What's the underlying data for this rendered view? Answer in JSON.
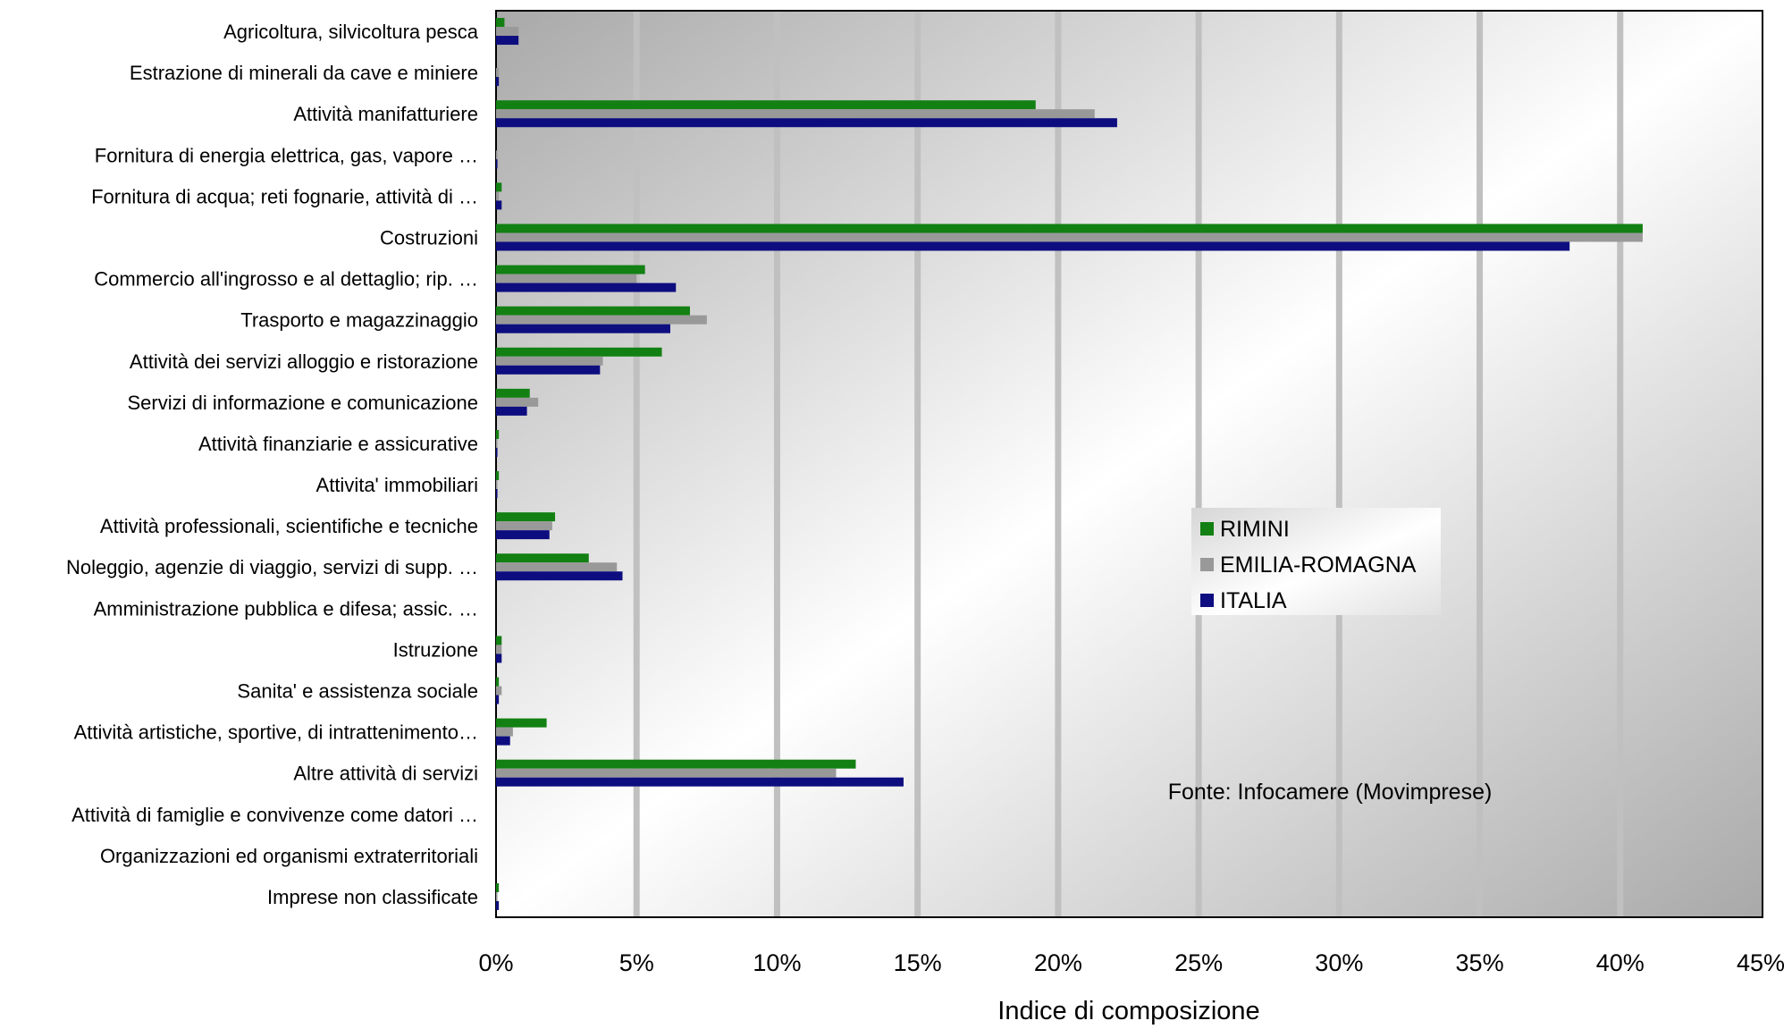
{
  "chart_data": {
    "type": "bar",
    "orientation": "horizontal",
    "xlabel": "Indice di composizione",
    "ylabel": "",
    "xlim": [
      0,
      45
    ],
    "x_ticks": [
      "0%",
      "5%",
      "10%",
      "15%",
      "20%",
      "25%",
      "30%",
      "35%",
      "40%",
      "45%"
    ],
    "grid": "vertical",
    "legend_position": "center-right",
    "annotation": "Fonte: Infocamere (Movimprese)",
    "categories": [
      "Agricoltura, silvicoltura pesca",
      "Estrazione di minerali da cave e miniere",
      "Attività manifatturiere",
      "Fornitura di energia elettrica, gas, vapore …",
      "Fornitura di acqua; reti fognarie, attività di …",
      "Costruzioni",
      "Commercio all'ingrosso e al dettaglio; rip. …",
      "Trasporto e magazzinaggio",
      "Attività dei servizi alloggio e ristorazione",
      "Servizi di informazione e comunicazione",
      "Attività finanziarie e assicurative",
      "Attivita' immobiliari",
      "Attività professionali, scientifiche e tecniche",
      "Noleggio, agenzie di viaggio, servizi di supp. …",
      "Amministrazione pubblica e difesa; assic. …",
      "Istruzione",
      "Sanita' e assistenza sociale",
      "Attività artistiche, sportive, di intrattenimento…",
      "Altre attività di servizi",
      "Attività di famiglie e convivenze come datori …",
      "Organizzazioni ed organismi extraterritoriali",
      "Imprese non classificate"
    ],
    "series": [
      {
        "name": "RIMINI",
        "color": "#128012",
        "values": [
          0.3,
          0.0,
          19.2,
          0.0,
          0.2,
          40.8,
          5.3,
          6.9,
          5.9,
          1.2,
          0.1,
          0.1,
          2.1,
          3.3,
          0.0,
          0.2,
          0.1,
          1.8,
          12.8,
          0.0,
          0.0,
          0.1
        ]
      },
      {
        "name": "EMILIA-ROMAGNA",
        "color": "#999999",
        "values": [
          0.8,
          0.1,
          21.3,
          0.05,
          0.1,
          40.8,
          5.0,
          7.5,
          3.8,
          1.5,
          0.05,
          0.05,
          2.0,
          4.3,
          0.0,
          0.2,
          0.2,
          0.6,
          12.1,
          0.0,
          0.0,
          0.05
        ]
      },
      {
        "name": "ITALIA",
        "color": "#0d0d80",
        "values": [
          0.8,
          0.1,
          22.1,
          0.05,
          0.2,
          38.2,
          6.4,
          6.2,
          3.7,
          1.1,
          0.05,
          0.05,
          1.9,
          4.5,
          0.0,
          0.2,
          0.1,
          0.5,
          14.5,
          0.0,
          0.0,
          0.1
        ]
      }
    ]
  }
}
